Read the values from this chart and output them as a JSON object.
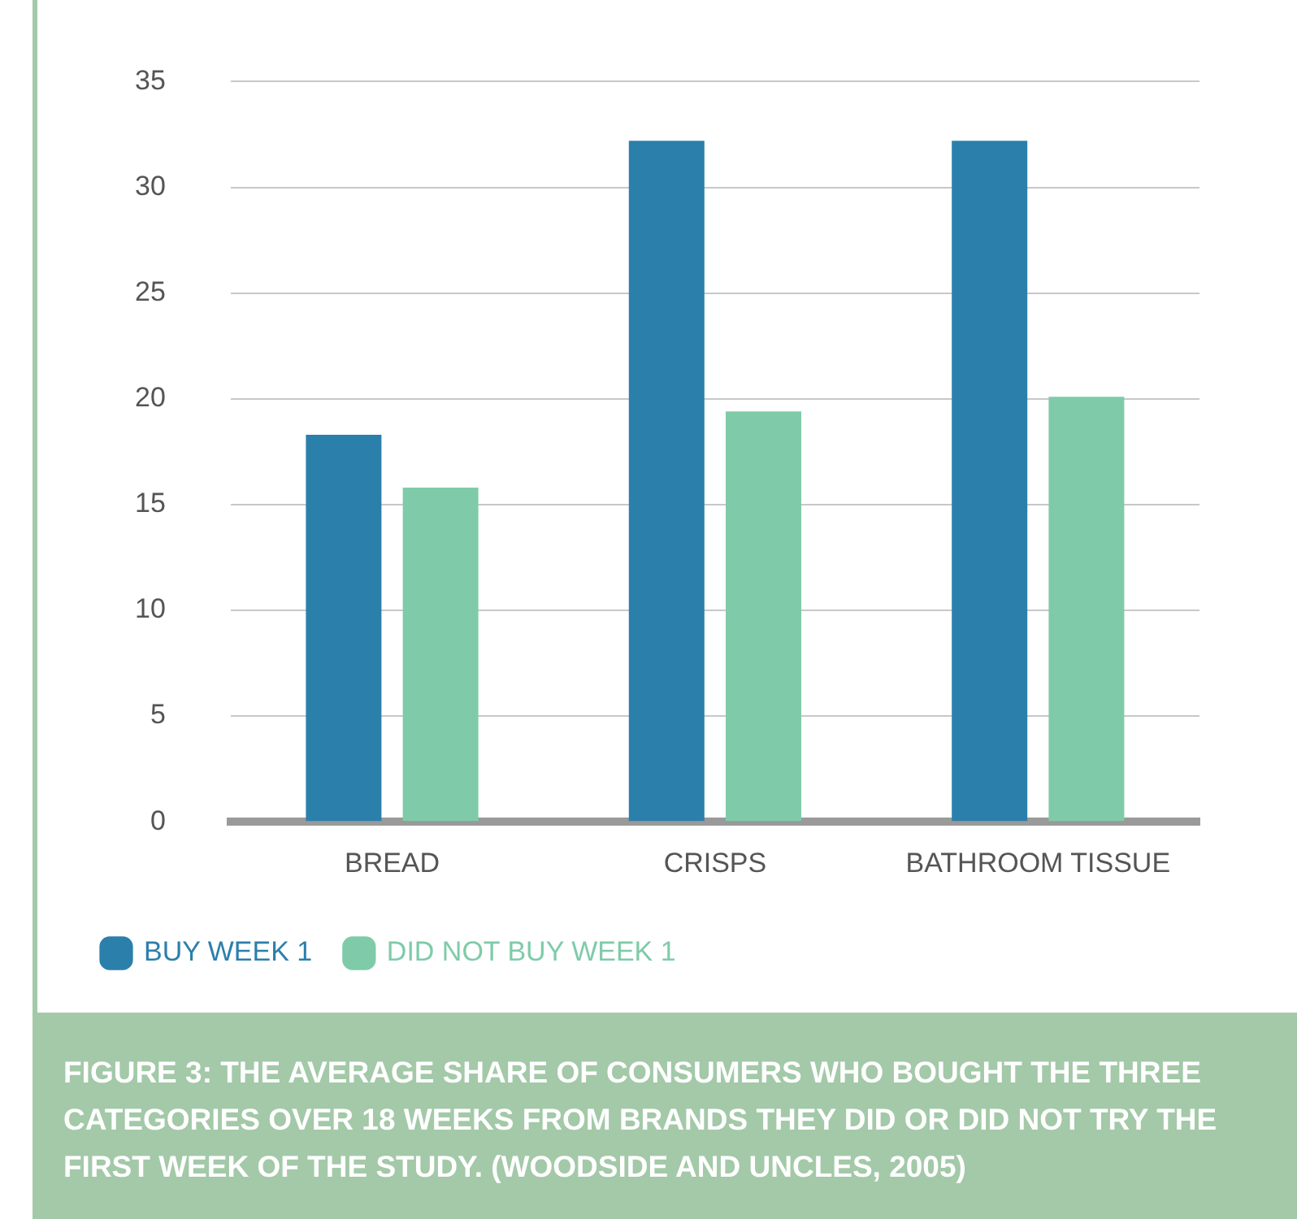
{
  "chart_data": {
    "type": "bar",
    "categories": [
      "BREAD",
      "CRISPS",
      "BATHROOM TISSUE"
    ],
    "series": [
      {
        "name": "BUY WEEK 1",
        "color": "#2b80ab",
        "values": [
          18.3,
          32.2,
          32.2
        ]
      },
      {
        "name": "DID NOT BUY WEEK 1",
        "color": "#7fcba9",
        "values": [
          15.8,
          19.4,
          20.1
        ]
      }
    ],
    "ylim": [
      0,
      35
    ],
    "yticks": [
      0,
      5,
      10,
      15,
      20,
      25,
      30,
      35
    ],
    "grid": "y",
    "legend": "bottom left",
    "annotations": [
      "FIGURE 3: THE AVERAGE SHARE OF CONSUMERS WHO BOUGHT THE THREE CATEGORIES OVER 18 WEEKS FROM BRANDS THEY DID OR DID NOT TRY THE FIRST WEEK OF THE STUDY. (WOODSIDE AND UNCLES, 2005)"
    ]
  }
}
